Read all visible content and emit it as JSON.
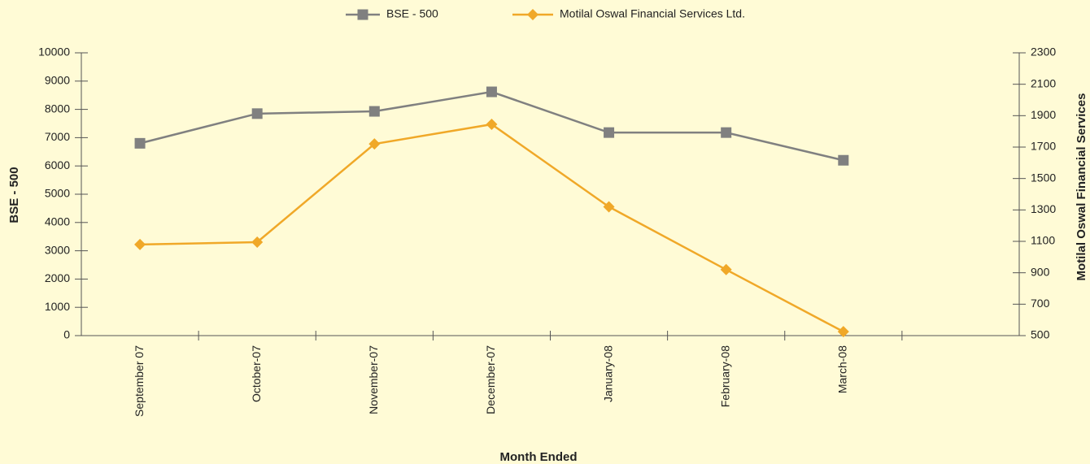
{
  "chart_data": {
    "type": "line",
    "x_label": "Month Ended",
    "y_label": "BSE - 500",
    "y2_label": "Motilal Oswal Financial Services",
    "categories": [
      "September 07",
      "October-07",
      "November-07",
      "December-07",
      "January-08",
      "February-08",
      "March-08",
      null
    ],
    "series": [
      {
        "name": "BSE - 500",
        "color": "#808080",
        "marker": "square",
        "values": [
          6800,
          7850,
          7930,
          8620,
          7180,
          7180,
          6200,
          null
        ]
      },
      {
        "name": "Motilal Oswal Financial Services Ltd.",
        "color": "#f0a828",
        "marker": "diamond",
        "axis": "y2",
        "values": [
          1080,
          1095,
          1720,
          1845,
          1320,
          920,
          525,
          null
        ]
      }
    ],
    "ylim": [
      0,
      10000
    ],
    "yticks": [
      0,
      1000,
      2000,
      3000,
      4000,
      5000,
      6000,
      7000,
      8000,
      9000,
      10000
    ],
    "y2lim": [
      500,
      2300
    ],
    "y2ticks": [
      500,
      700,
      900,
      1100,
      1300,
      1500,
      1700,
      1900,
      2100,
      2300
    ],
    "legend": "top"
  }
}
